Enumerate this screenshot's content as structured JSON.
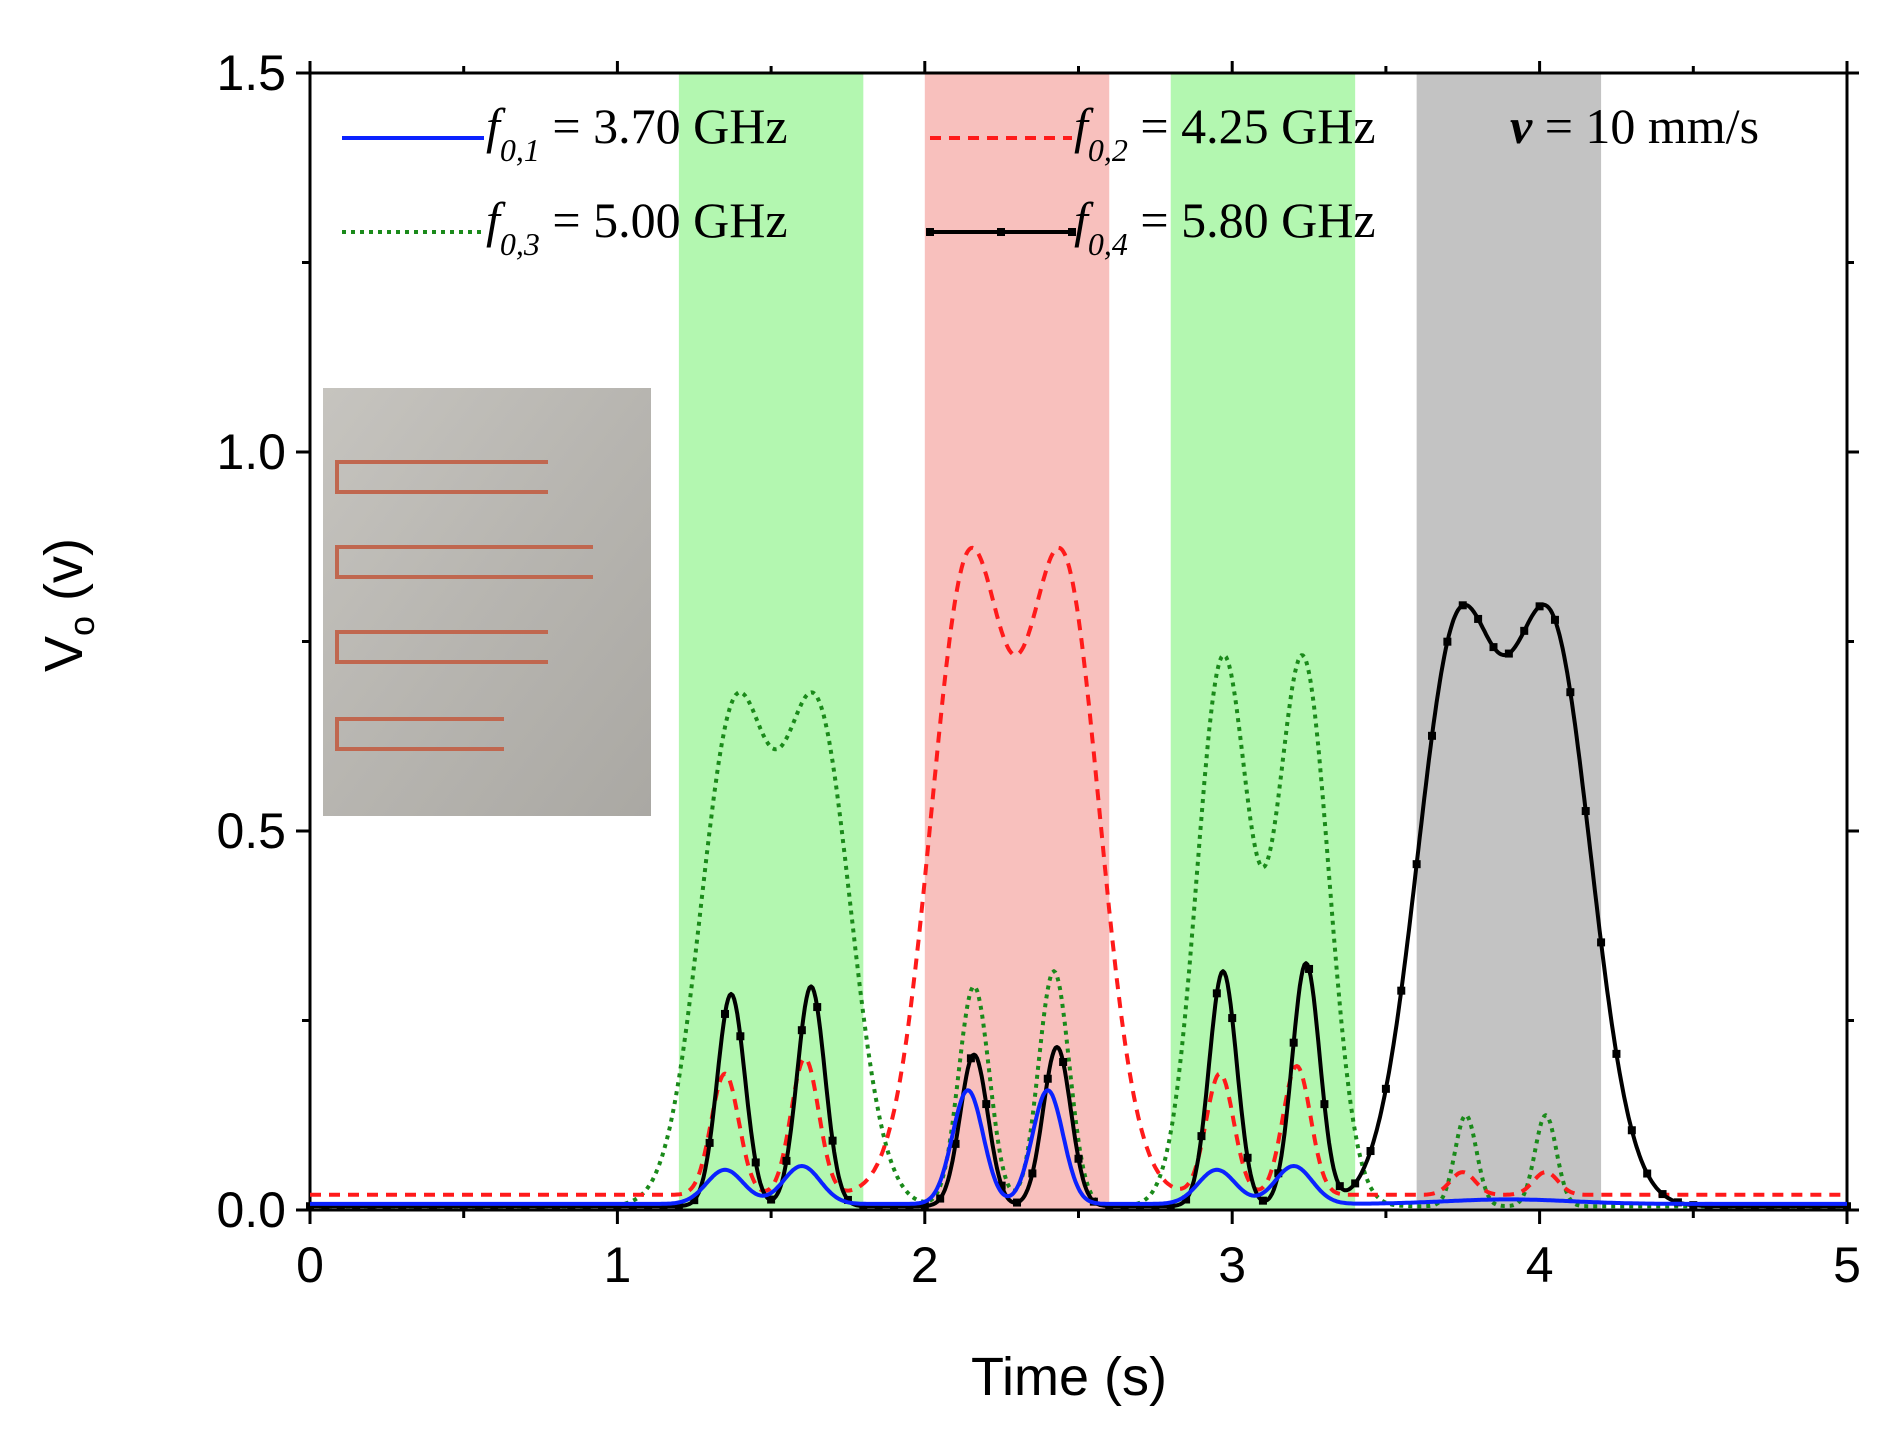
{
  "chart_data": {
    "type": "line",
    "title": "",
    "xlabel": "Time (s)",
    "ylabel": "V",
    "ylabel_sub": "o",
    "ylabel_unit": " (v)",
    "xlim": [
      0,
      5
    ],
    "ylim": [
      0,
      1.5
    ],
    "xticks": [
      0,
      1,
      2,
      3,
      4,
      5
    ],
    "xtick_labels": [
      "0",
      "1",
      "2",
      "3",
      "4",
      "5"
    ],
    "yticks": [
      0,
      0.5,
      1.0,
      1.5
    ],
    "ytick_labels": [
      "0.0",
      "0.5",
      "1.0",
      "1.5"
    ],
    "annotation": {
      "var": "v",
      "text": " = 10 mm/s"
    },
    "legend_position": "top",
    "shaded_regions": [
      {
        "x0": 1.2,
        "x1": 1.8,
        "color": "#b3f7b0"
      },
      {
        "x0": 2.0,
        "x1": 2.6,
        "color": "#f8c0bd"
      },
      {
        "x0": 2.8,
        "x1": 3.4,
        "color": "#b3f7b0"
      },
      {
        "x0": 3.6,
        "x1": 4.2,
        "color": "#c3c3c3"
      }
    ],
    "series": [
      {
        "name": "f_{0,3} = 5.00 GHz",
        "symbol": "f",
        "sub": "0,3",
        "value": "= 5.00 GHz",
        "color": "#1a8a1a",
        "dash": "4,5",
        "marker": false,
        "baseline": 0.005,
        "peaks": [
          [
            1.38,
            0.64,
            0.11
          ],
          [
            1.65,
            0.64,
            0.11
          ],
          [
            2.16,
            0.29,
            0.05
          ],
          [
            2.42,
            0.31,
            0.05
          ],
          [
            2.97,
            0.72,
            0.085
          ],
          [
            3.23,
            0.72,
            0.085
          ],
          [
            3.76,
            0.12,
            0.035
          ],
          [
            4.02,
            0.12,
            0.035
          ]
        ]
      },
      {
        "name": "f_{0,2} = 4.25 GHz",
        "symbol": "f",
        "sub": "0,2",
        "value": "= 4.25 GHz",
        "color": "#ff1a1a",
        "dash": "11,8",
        "marker": false,
        "baseline": 0.02,
        "peaks": [
          [
            1.35,
            0.16,
            0.045
          ],
          [
            1.61,
            0.18,
            0.045
          ],
          [
            2.14,
            0.82,
            0.12
          ],
          [
            2.45,
            0.82,
            0.12
          ],
          [
            2.96,
            0.16,
            0.045
          ],
          [
            3.21,
            0.17,
            0.045
          ],
          [
            3.75,
            0.03,
            0.04
          ],
          [
            4.02,
            0.03,
            0.04
          ]
        ]
      },
      {
        "name": "f_{0,4} = 5.80 GHz",
        "symbol": "f",
        "sub": "0,4",
        "value": "= 5.80 GHz",
        "color": "#000000",
        "dash": "",
        "marker": true,
        "baseline": 0.005,
        "peaks": [
          [
            1.37,
            0.28,
            0.045
          ],
          [
            1.63,
            0.29,
            0.045
          ],
          [
            2.16,
            0.2,
            0.045
          ],
          [
            2.43,
            0.21,
            0.045
          ],
          [
            2.97,
            0.31,
            0.045
          ],
          [
            3.24,
            0.32,
            0.045
          ],
          [
            3.73,
            0.74,
            0.13
          ],
          [
            4.04,
            0.74,
            0.13
          ]
        ]
      },
      {
        "name": "f_{0,1} = 3.70 GHz",
        "symbol": "f",
        "sub": "0,1",
        "value": "= 3.70 GHz",
        "color": "#0b22ff",
        "dash": "",
        "marker": false,
        "baseline": 0.008,
        "peaks": [
          [
            1.35,
            0.045,
            0.06
          ],
          [
            1.6,
            0.05,
            0.06
          ],
          [
            2.14,
            0.15,
            0.05
          ],
          [
            2.4,
            0.15,
            0.05
          ],
          [
            2.95,
            0.045,
            0.06
          ],
          [
            3.2,
            0.05,
            0.06
          ],
          [
            3.9,
            0.006,
            0.2
          ]
        ]
      }
    ],
    "legend_order": [
      3,
      1,
      0,
      2
    ]
  },
  "inset": {
    "description_icon": "sensor-photo-icon",
    "colors": {
      "board": "#b9b7b2",
      "trace": "#c0674f"
    }
  }
}
